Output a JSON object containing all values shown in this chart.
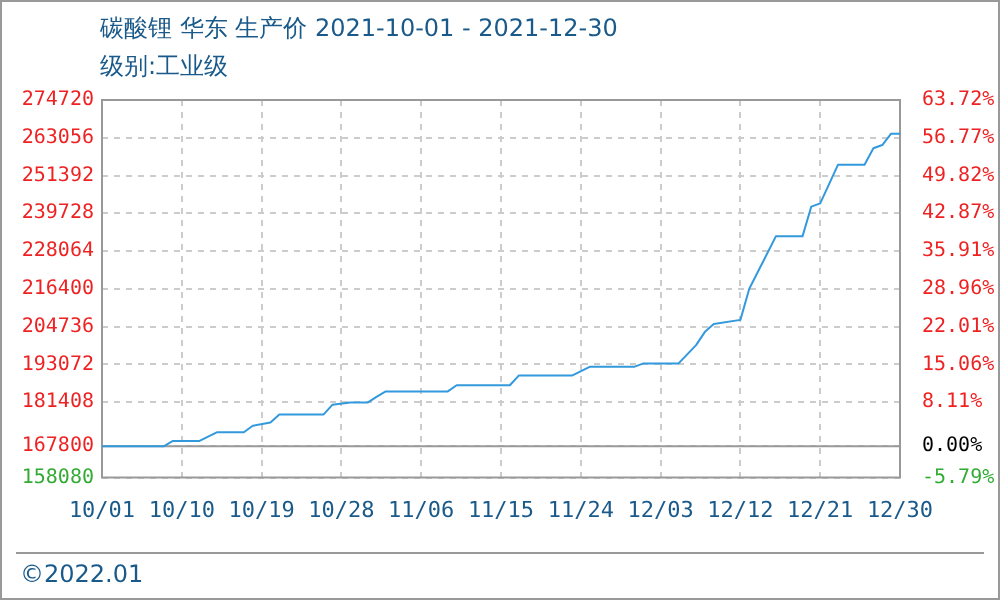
{
  "chart_data": {
    "type": "line",
    "title": "碳酸锂 华东 生产价 2021-10-01 - 2021-12-30",
    "subtitle": "级别:工业级",
    "annotations": [
      "©2022.01"
    ],
    "x": [
      "2021-10-01",
      "2021-10-08",
      "2021-10-09",
      "2021-10-12",
      "2021-10-14",
      "2021-10-17",
      "2021-10-18",
      "2021-10-20",
      "2021-10-21",
      "2021-10-26",
      "2021-10-27",
      "2021-10-29",
      "2021-10-31",
      "2021-11-01",
      "2021-11-02",
      "2021-11-09",
      "2021-11-10",
      "2021-11-16",
      "2021-11-17",
      "2021-11-23",
      "2021-11-25",
      "2021-11-30",
      "2021-12-01",
      "2021-12-05",
      "2021-12-07",
      "2021-12-08",
      "2021-12-09",
      "2021-12-12",
      "2021-12-13",
      "2021-12-16",
      "2021-12-19",
      "2021-12-20",
      "2021-12-21",
      "2021-12-23",
      "2021-12-26",
      "2021-12-27",
      "2021-12-28",
      "2021-12-29",
      "2021-12-30"
    ],
    "series": [
      {
        "color": "#3399dd",
        "values": [
          167800,
          167800,
          169400,
          169400,
          172100,
          172100,
          174100,
          175100,
          177600,
          177600,
          180600,
          181300,
          181300,
          183100,
          184700,
          184700,
          186600,
          186600,
          189600,
          189600,
          192300,
          192300,
          193300,
          193300,
          199000,
          203100,
          205500,
          206800,
          216400,
          232600,
          232600,
          241800,
          242800,
          254700,
          254700,
          259800,
          260800,
          264300,
          264300
        ]
      }
    ],
    "xlim": [
      "2021-10-01",
      "2021-12-30"
    ],
    "xticks": [
      {
        "value": "2021-10-01",
        "label": "10/01"
      },
      {
        "value": "2021-10-10",
        "label": "10/10"
      },
      {
        "value": "2021-10-19",
        "label": "10/19"
      },
      {
        "value": "2021-10-28",
        "label": "10/28"
      },
      {
        "value": "2021-11-06",
        "label": "11/06"
      },
      {
        "value": "2021-11-15",
        "label": "11/15"
      },
      {
        "value": "2021-11-24",
        "label": "11/24"
      },
      {
        "value": "2021-12-03",
        "label": "12/03"
      },
      {
        "value": "2021-12-12",
        "label": "12/12"
      },
      {
        "value": "2021-12-21",
        "label": "12/21"
      },
      {
        "value": "2021-12-30",
        "label": "12/30"
      }
    ],
    "ylim": [
      158080,
      274720
    ],
    "yticks": [
      158080,
      167800,
      181408,
      193072,
      204736,
      216400,
      228064,
      239728,
      251392,
      263056,
      274720
    ],
    "y2lim": [
      -5.79,
      63.72
    ],
    "y2ticks": [
      {
        "value": -5.79,
        "label": "-5.79%"
      },
      {
        "value": 0,
        "label": "0.00%"
      },
      {
        "value": 8.11,
        "label": "8.11%"
      },
      {
        "value": 15.06,
        "label": "15.06%"
      },
      {
        "value": 22.01,
        "label": "22.01%"
      },
      {
        "value": 28.96,
        "label": "28.96%"
      },
      {
        "value": 35.91,
        "label": "35.91%"
      },
      {
        "value": 42.87,
        "label": "42.87%"
      },
      {
        "value": 49.82,
        "label": "49.82%"
      },
      {
        "value": 56.77,
        "label": "56.77%"
      },
      {
        "value": 63.72,
        "label": "63.72%"
      }
    ],
    "grid": true,
    "legend": false,
    "marker": "none",
    "line_style": "solid"
  }
}
